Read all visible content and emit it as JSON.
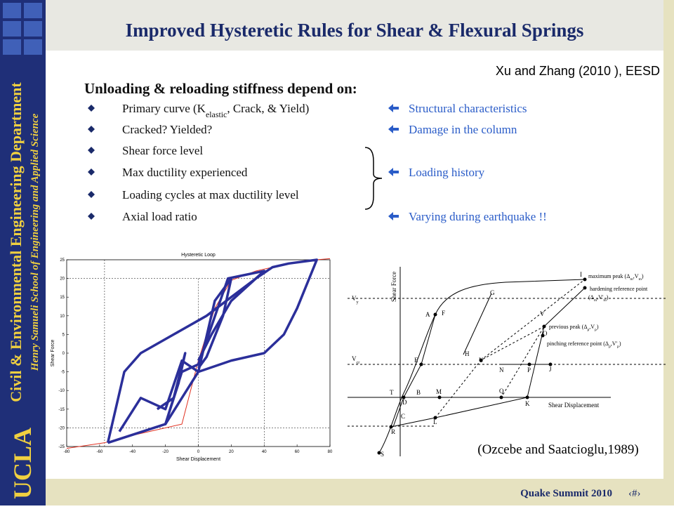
{
  "header": {
    "title": "Improved Hysteretic Rules for Shear & Flexural Springs",
    "citation": "Xu and Zhang (2010 ), EESD"
  },
  "sidebar": {
    "department": "Civil & Environmental Engineering Department",
    "school": "Henry Samueli School of Engineering and Applied Science",
    "university": "UCLA"
  },
  "body": {
    "heading": "Unloading & reloading stiffness depend on:",
    "bullets": [
      {
        "parts": [
          "Primary curve (K",
          "elastic",
          ", Crack, & Yield)"
        ],
        "note": "Structural characteristics"
      },
      {
        "parts": [
          "Cracked? Yielded?"
        ],
        "note": "Damage  in the column"
      },
      {
        "parts": [
          "Shear force level"
        ]
      },
      {
        "parts": [
          "Max ductility experienced"
        ],
        "note": "Loading history"
      },
      {
        "parts": [
          "Loading cycles at max ductility level"
        ]
      },
      {
        "parts": [
          "Axial load ratio"
        ],
        "note": "Varying during earthquake !!"
      }
    ]
  },
  "chart_data": {
    "type": "line",
    "title": "Hysteretic Loop",
    "xlabel": "Shear Displacement",
    "ylabel": "Shear Force",
    "xlim": [
      -80,
      80
    ],
    "ylim": [
      -25,
      25
    ],
    "xticks": [
      -80,
      -60,
      -40,
      -20,
      0,
      20,
      40,
      60,
      80
    ],
    "yticks": [
      -25,
      -20,
      -15,
      -10,
      -5,
      0,
      5,
      10,
      15,
      20,
      25
    ],
    "series": [
      {
        "color": "#e03020",
        "width": 1,
        "x": [
          -80,
          -57,
          -45,
          -30,
          -10,
          0,
          10,
          20,
          35,
          50,
          72,
          80
        ],
        "values": [
          -25.5,
          -24,
          -22.5,
          -21,
          -19,
          -2,
          12,
          19.5,
          22,
          23.5,
          25,
          25.3
        ]
      },
      {
        "color": "#2b2f9a",
        "width": 3.5,
        "x": [
          -55,
          -45,
          -35,
          -15,
          5,
          20,
          35,
          45,
          55,
          72,
          60,
          52,
          40,
          20,
          0,
          -20,
          -55
        ],
        "values": [
          -24,
          -5,
          0,
          5,
          10,
          15,
          20,
          23,
          24,
          25,
          12,
          5,
          0,
          -2,
          -5,
          -19,
          -24
        ]
      },
      {
        "color": "#2b2f9a",
        "width": 3.5,
        "x": [
          -48,
          -35,
          -20,
          -10,
          0,
          10,
          20,
          15,
          5,
          0
        ],
        "values": [
          -21,
          -12,
          -15,
          -2,
          -5,
          14,
          20,
          10,
          -1,
          -4
        ]
      },
      {
        "color": "#2b2f9a",
        "width": 3.5,
        "x": [
          -25,
          -15,
          -8,
          -12,
          -20,
          -10,
          0,
          18,
          40,
          20,
          8,
          0
        ],
        "values": [
          -15,
          -12,
          0,
          -8,
          -19,
          -5,
          -3,
          20,
          22,
          14,
          5,
          -2
        ]
      }
    ]
  },
  "diagram": {
    "ylabel": "Shear Force",
    "xlabel": "Shear Displacement",
    "vy": [
      "V",
      "y"
    ],
    "vcr": [
      "V",
      "cr"
    ],
    "letters": [
      "I",
      "G",
      "F",
      "A",
      "V",
      "O",
      "H",
      "E",
      "U",
      "N",
      "P",
      "J",
      "T",
      "B",
      "M",
      "Q",
      "D",
      "K",
      "C",
      "L",
      "R",
      "S"
    ],
    "annotations": [
      {
        "parts": [
          "maximum peak (Δ",
          "m",
          ",V",
          "m",
          ")"
        ]
      },
      {
        "parts": [
          "hardening reference point"
        ]
      },
      {
        "parts": [
          "(Δ",
          "m",
          ",V'",
          "m",
          ")"
        ]
      },
      {
        "parts": [
          "previous peak (Δ",
          "p",
          ",V",
          "p",
          ")"
        ]
      },
      {
        "parts": [
          "pinching reference point (Δ",
          "p",
          ",V'",
          "p",
          ")"
        ]
      }
    ],
    "citation": "(Ozcebe and Saatcioglu,1989)"
  },
  "footer": {
    "event": "Quake Summit 2010",
    "page": "‹#›"
  }
}
